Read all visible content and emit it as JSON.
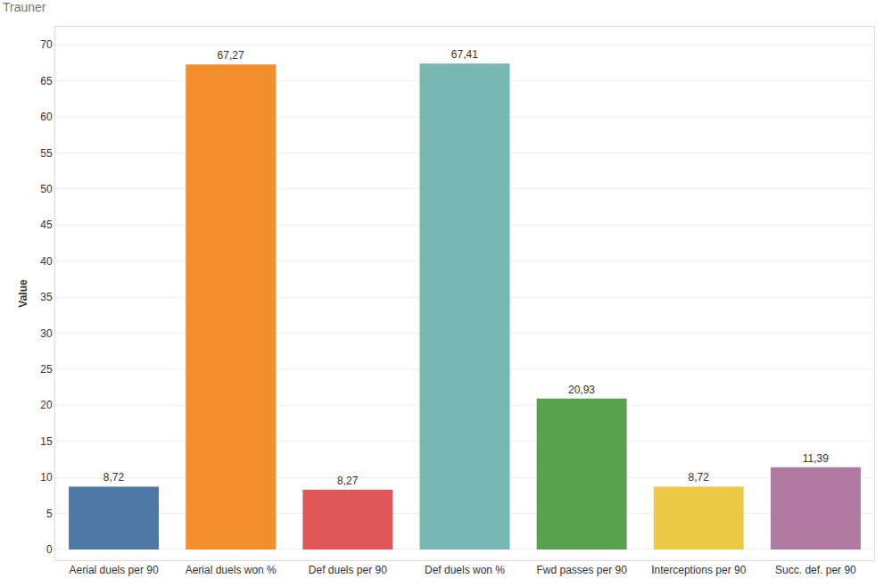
{
  "chart_data": {
    "type": "bar",
    "title": "Trauner",
    "y_label": "Value",
    "categories": [
      "Aerial duels per 90",
      "Aerial duels won %",
      "Def duels per 90",
      "Def duels won %",
      "Fwd passes per 90",
      "Interceptions per 90",
      "Succ. def. per 90"
    ],
    "values": [
      8.72,
      67.27,
      8.27,
      67.41,
      20.93,
      8.72,
      11.39
    ],
    "value_labels": [
      "8,72",
      "67,27",
      "8,27",
      "67,41",
      "20,93",
      "8,72",
      "11,39"
    ],
    "colors": [
      "#4e79a7",
      "#f28e2b",
      "#e15759",
      "#76b7b2",
      "#59a14f",
      "#edc948",
      "#b07aa1"
    ],
    "ylim": [
      -1.5,
      72.5
    ],
    "yticks": [
      0,
      5,
      10,
      15,
      20,
      25,
      30,
      35,
      40,
      45,
      50,
      55,
      60,
      65,
      70
    ],
    "grid": true,
    "data_labels": true
  }
}
